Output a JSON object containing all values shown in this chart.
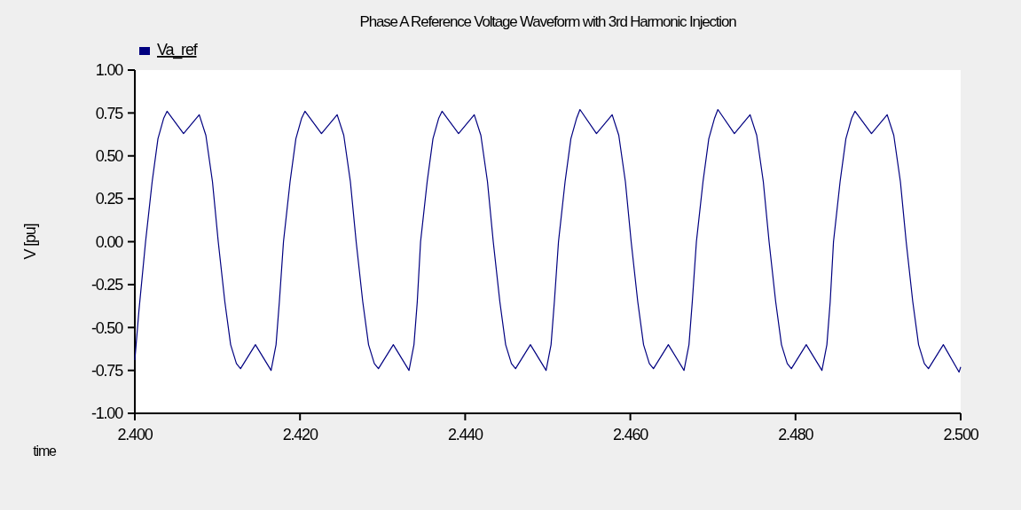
{
  "chart_data": {
    "type": "line",
    "title": "Phase A Reference Voltage Waveform with 3rd Harmonic Injection",
    "xlabel": "time",
    "ylabel": "V [pu]",
    "xlim": [
      2.4,
      2.5
    ],
    "xticks": [
      {
        "value": 2.4,
        "label": "2.400"
      },
      {
        "value": 2.42,
        "label": "2.420"
      },
      {
        "value": 2.44,
        "label": "2.440"
      },
      {
        "value": 2.46,
        "label": "2.460"
      },
      {
        "value": 2.48,
        "label": "2.480"
      },
      {
        "value": 2.5,
        "label": "2.500"
      }
    ],
    "ylim": [
      -1,
      1
    ],
    "yticks": [
      {
        "value": -1,
        "label": "-1.00"
      },
      {
        "value": -0.75,
        "label": "-0.75"
      },
      {
        "value": -0.5,
        "label": "-0.50"
      },
      {
        "value": -0.25,
        "label": "-0.25"
      },
      {
        "value": 0,
        "label": "0.00"
      },
      {
        "value": 0.25,
        "label": "0.25"
      },
      {
        "value": 0.5,
        "label": "0.50"
      },
      {
        "value": 0.75,
        "label": "0.75"
      },
      {
        "value": 1,
        "label": "1.00"
      }
    ],
    "grid": false,
    "legend": "top left",
    "marker": "none",
    "line_style": "solid",
    "series": [
      {
        "name": "Va_ref",
        "color": "#000080",
        "x": [
          2.4,
          2.4005,
          2.4013,
          2.4021,
          2.4028,
          2.4035,
          2.4039,
          2.4059,
          2.4078,
          2.4086,
          2.4094,
          2.4101,
          2.4109,
          2.4116,
          2.4123,
          2.4128,
          2.4146,
          2.4165,
          2.4171,
          2.4175,
          2.418,
          2.4188,
          2.4195,
          2.4202,
          2.4206,
          2.4226,
          2.4245,
          2.4253,
          2.4261,
          2.4268,
          2.4276,
          2.4283,
          2.429,
          2.4295,
          2.4313,
          2.4332,
          2.4338,
          2.4342,
          2.4346,
          2.4354,
          2.4361,
          2.4368,
          2.4372,
          2.4392,
          2.4411,
          2.4419,
          2.4427,
          2.4434,
          2.4442,
          2.4449,
          2.4456,
          2.4461,
          2.4479,
          2.4498,
          2.4504,
          2.4508,
          2.4513,
          2.4521,
          2.4528,
          2.4535,
          2.4539,
          2.4559,
          2.4578,
          2.4586,
          2.4594,
          2.4601,
          2.4609,
          2.4616,
          2.4623,
          2.4628,
          2.4646,
          2.4665,
          2.4671,
          2.4675,
          2.468,
          2.4688,
          2.4695,
          2.4702,
          2.4706,
          2.4726,
          2.4745,
          2.4753,
          2.4761,
          2.4768,
          2.4776,
          2.4783,
          2.479,
          2.4795,
          2.4813,
          2.4832,
          2.4838,
          2.4842,
          2.4846,
          2.4854,
          2.4861,
          2.4868,
          2.4872,
          2.4892,
          2.4911,
          2.4919,
          2.4927,
          2.4934,
          2.4942,
          2.4949,
          2.4956,
          2.4961,
          2.4979,
          2.4998,
          2.5
        ],
        "values": [
          -0.69,
          -0.4,
          0,
          0.35,
          0.6,
          0.72,
          0.76,
          0.63,
          0.74,
          0.62,
          0.35,
          0,
          -0.35,
          -0.6,
          -0.71,
          -0.74,
          -0.6,
          -0.75,
          -0.6,
          -0.35,
          0,
          0.35,
          0.6,
          0.72,
          0.76,
          0.63,
          0.74,
          0.62,
          0.35,
          0,
          -0.35,
          -0.6,
          -0.71,
          -0.74,
          -0.6,
          -0.75,
          -0.6,
          -0.35,
          0,
          0.35,
          0.6,
          0.72,
          0.76,
          0.63,
          0.74,
          0.62,
          0.35,
          0,
          -0.35,
          -0.6,
          -0.71,
          -0.74,
          -0.6,
          -0.75,
          -0.6,
          -0.35,
          0,
          0.35,
          0.6,
          0.72,
          0.77,
          0.63,
          0.74,
          0.62,
          0.35,
          0,
          -0.35,
          -0.6,
          -0.71,
          -0.74,
          -0.6,
          -0.75,
          -0.6,
          -0.35,
          0,
          0.35,
          0.6,
          0.72,
          0.77,
          0.63,
          0.74,
          0.62,
          0.35,
          0,
          -0.35,
          -0.6,
          -0.71,
          -0.74,
          -0.6,
          -0.75,
          -0.6,
          -0.35,
          0,
          0.35,
          0.6,
          0.72,
          0.76,
          0.63,
          0.74,
          0.62,
          0.35,
          0,
          -0.35,
          -0.6,
          -0.71,
          -0.74,
          -0.6,
          -0.76,
          -0.73
        ]
      }
    ]
  }
}
